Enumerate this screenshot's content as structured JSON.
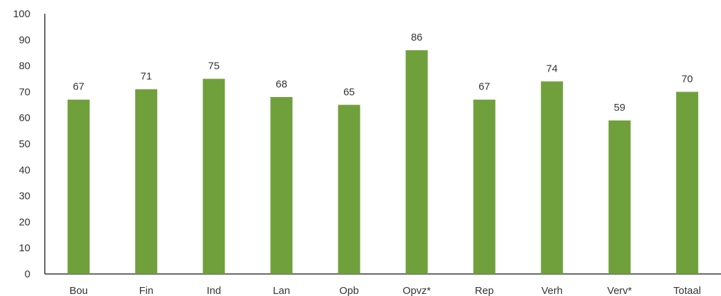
{
  "chart_data": {
    "type": "bar",
    "title": "",
    "xlabel": "",
    "ylabel": "",
    "categories": [
      "Bou",
      "Fin",
      "Ind",
      "Lan",
      "Opb",
      "Opvz*",
      "Rep",
      "Verh",
      "Verv*",
      "Totaal"
    ],
    "values": [
      67,
      71,
      75,
      68,
      65,
      86,
      67,
      74,
      59,
      70
    ],
    "ylim": [
      0,
      100
    ],
    "yticks": [
      0,
      10,
      20,
      30,
      40,
      50,
      60,
      70,
      80,
      90,
      100
    ],
    "grid": false,
    "legend": "none",
    "colors": {
      "bar": "#70a03c",
      "axis": "#333333",
      "text": "#333333"
    }
  }
}
